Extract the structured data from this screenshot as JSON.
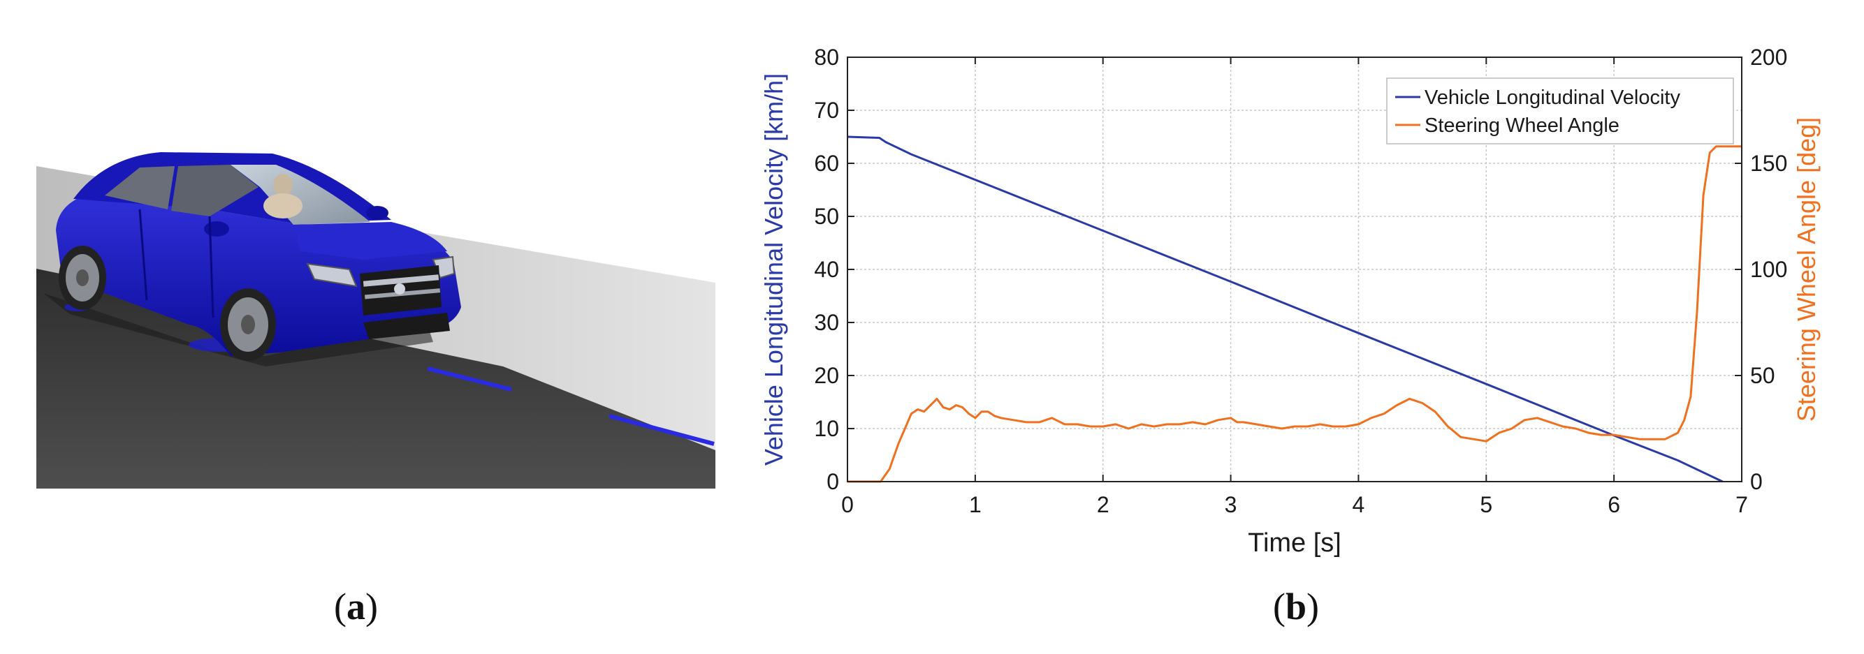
{
  "captions": {
    "a": "a",
    "b": "b"
  },
  "chart_data": {
    "type": "line",
    "xlabel": "Time [s]",
    "ylabel_left": "Vehicle Longitudinal Velocity [km/h]",
    "ylabel_right": "Steering Wheel Angle [deg]",
    "xlim": [
      0,
      7
    ],
    "ylim_left": [
      0,
      80
    ],
    "ylim_right": [
      0,
      200
    ],
    "x_ticks": [
      "0",
      "1",
      "2",
      "3",
      "4",
      "5",
      "6",
      "7"
    ],
    "y_ticks_left": [
      "0",
      "10",
      "20",
      "30",
      "40",
      "50",
      "60",
      "70",
      "80"
    ],
    "y_ticks_right": [
      "0",
      "50",
      "100",
      "150",
      "200"
    ],
    "grid": true,
    "legend_position": "top-right",
    "colors": {
      "velocity": "#2a3aa8",
      "steering": "#f07020"
    },
    "series": [
      {
        "name": "Vehicle Longitudinal Velocity",
        "axis": "left",
        "x": [
          0,
          0.25,
          0.3,
          0.5,
          1.0,
          2.0,
          3.0,
          4.0,
          5.0,
          6.0,
          6.5,
          6.85
        ],
        "values": [
          65,
          64.8,
          64,
          61.7,
          56.9,
          47.3,
          37.7,
          28,
          18.4,
          8.7,
          4,
          0
        ]
      },
      {
        "name": "Steering Wheel Angle",
        "axis": "right",
        "x": [
          0,
          0.26,
          0.33,
          0.4,
          0.45,
          0.5,
          0.55,
          0.6,
          0.65,
          0.7,
          0.75,
          0.8,
          0.85,
          0.9,
          0.95,
          1.0,
          1.05,
          1.1,
          1.15,
          1.2,
          1.3,
          1.4,
          1.5,
          1.6,
          1.7,
          1.8,
          1.9,
          2.0,
          2.1,
          2.2,
          2.3,
          2.4,
          2.5,
          2.6,
          2.7,
          2.8,
          2.9,
          3.0,
          3.05,
          3.1,
          3.2,
          3.3,
          3.4,
          3.5,
          3.6,
          3.7,
          3.8,
          3.9,
          4.0,
          4.1,
          4.2,
          4.3,
          4.4,
          4.5,
          4.6,
          4.7,
          4.8,
          4.9,
          5.0,
          5.1,
          5.2,
          5.3,
          5.4,
          5.5,
          5.6,
          5.7,
          5.8,
          5.9,
          6.0,
          6.1,
          6.2,
          6.3,
          6.4,
          6.5,
          6.55,
          6.6,
          6.65,
          6.7,
          6.75,
          6.8,
          6.85,
          6.9,
          7.0
        ],
        "values": [
          0,
          0,
          6,
          18,
          25,
          32,
          34,
          33,
          36,
          39,
          35,
          34,
          36,
          35,
          32,
          30,
          33,
          33,
          31,
          30,
          29,
          28,
          28,
          30,
          27,
          27,
          26,
          26,
          27,
          25,
          27,
          26,
          27,
          27,
          28,
          27,
          29,
          30,
          28,
          28,
          27,
          26,
          25,
          26,
          26,
          27,
          26,
          26,
          27,
          30,
          32,
          36,
          39,
          37,
          33,
          26,
          21,
          20,
          19,
          23,
          25,
          29,
          30,
          28,
          26,
          25,
          23,
          22,
          22,
          21,
          20,
          20,
          20,
          23,
          29,
          40,
          80,
          135,
          155,
          158,
          158,
          158,
          158
        ]
      }
    ]
  }
}
